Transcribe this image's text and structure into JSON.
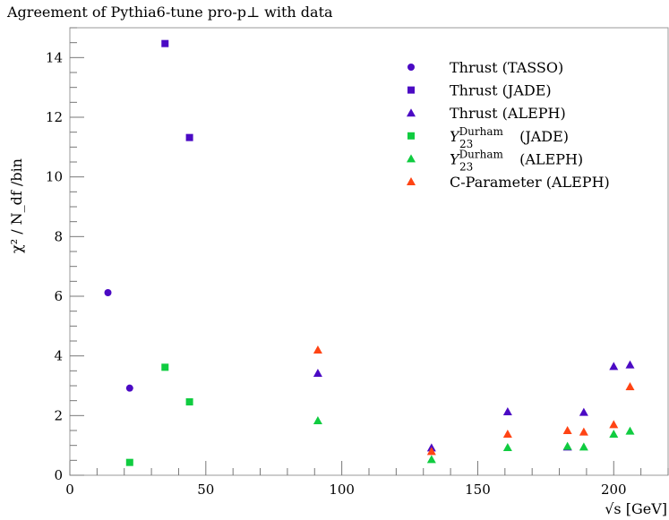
{
  "chart_data": {
    "type": "scatter",
    "title": "Agreement of Pythia6-tune pro-p⊥ with data",
    "xlabel": "√s [GeV]",
    "ylabel": "χ² / N_df /bin",
    "xlim": [
      0,
      220
    ],
    "ylim": [
      0,
      15
    ],
    "xticks": [
      0,
      50,
      100,
      150,
      200
    ],
    "yticks": [
      0,
      2,
      4,
      6,
      8,
      10,
      12,
      14
    ],
    "grid": false,
    "legend_position": "top-right",
    "series": [
      {
        "name": "Thrust (TASSO)",
        "marker": "circle",
        "color": "#4b0ac4",
        "x": [
          14,
          22
        ],
        "y": [
          6.12,
          2.92
        ]
      },
      {
        "name": "Thrust (JADE)",
        "marker": "square",
        "color": "#4b0ac4",
        "x": [
          35,
          44
        ],
        "y": [
          14.47,
          11.32
        ]
      },
      {
        "name": "Thrust (ALEPH)",
        "marker": "triangle",
        "color": "#4b0ac4",
        "x": [
          91.2,
          133,
          161,
          183,
          189,
          200,
          206
        ],
        "y": [
          3.42,
          0.92,
          2.13,
          0.95,
          2.11,
          3.65,
          3.7
        ]
      },
      {
        "name": "Y23 Durham (JADE)",
        "label_main": "Y",
        "label_sub": "23",
        "label_sup": "Durham",
        "label_rest": " (JADE)",
        "marker": "square",
        "color": "#10cc40",
        "x": [
          22,
          35,
          44
        ],
        "y": [
          0.43,
          3.62,
          2.46
        ]
      },
      {
        "name": "Y23 Durham (ALEPH)",
        "label_main": "Y",
        "label_sub": "23",
        "label_sup": "Durham",
        "label_rest": " (ALEPH)",
        "marker": "triangle",
        "color": "#10cc40",
        "x": [
          91.2,
          133,
          161,
          183,
          189,
          200,
          206
        ],
        "y": [
          1.83,
          0.53,
          0.93,
          0.97,
          0.95,
          1.38,
          1.48
        ]
      },
      {
        "name": "C-Parameter (ALEPH)",
        "marker": "triangle",
        "color": "#ff4414",
        "x": [
          91.2,
          133,
          161,
          183,
          189,
          200,
          206
        ],
        "y": [
          4.2,
          0.8,
          1.38,
          1.5,
          1.45,
          1.7,
          2.97
        ]
      }
    ]
  }
}
